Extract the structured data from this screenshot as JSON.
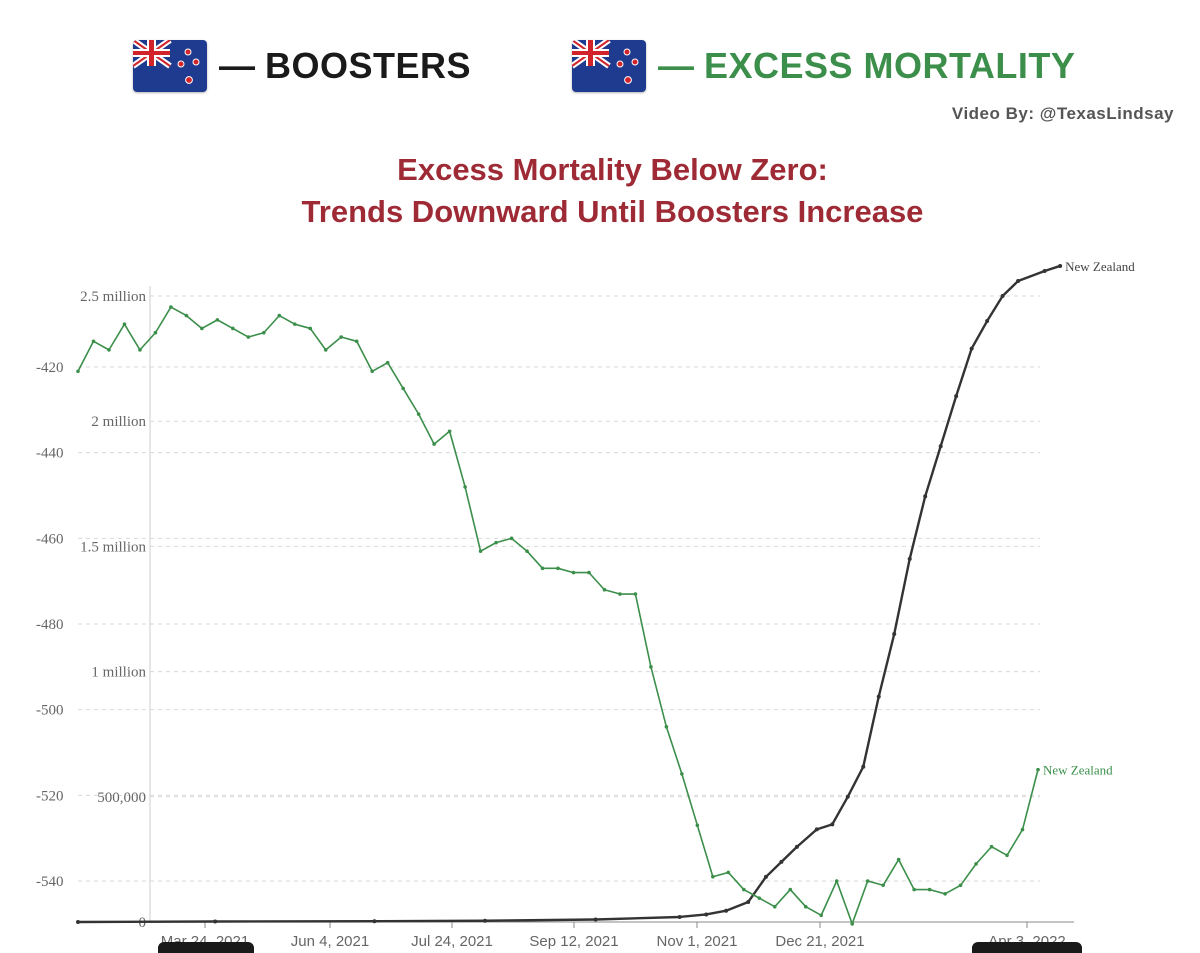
{
  "header": {
    "boosters_label": "BOOSTERS",
    "excess_label": "EXCESS MORTALITY",
    "dash": "—",
    "credit": "Video By: @TexasLindsay",
    "flag_icon": "new-zealand-flag-icon"
  },
  "colors": {
    "title": "#9e2a35",
    "boosters_line": "#333333",
    "excess_line": "#3b8f4a",
    "grid": "#d9d9d9"
  },
  "chart_data": {
    "type": "line",
    "title": "Excess Mortality Below Zero:",
    "subtitle": "Trends Downward Until Boosters Increase",
    "x_tick_labels": [
      "Mar 24, 2021",
      "Jun 4, 2021",
      "Jul 24, 2021",
      "Sep 12, 2021",
      "Nov 1, 2021",
      "Dec 21, 2021",
      "Apr 3, 2022"
    ],
    "grid": true,
    "left_axis": {
      "series": "boosters",
      "ticks": [
        "0",
        "500,000",
        "1 million",
        "1.5 million",
        "2 million",
        "2.5 million"
      ],
      "tick_values": [
        0,
        500000,
        1000000,
        1500000,
        2000000,
        2500000
      ],
      "ylim": [
        0,
        2500000
      ]
    },
    "right_axis": {
      "series": "excess",
      "ticks": [
        "-420",
        "-440",
        "-460",
        "-480",
        "-500",
        "-520",
        "-540"
      ],
      "tick_values": [
        -420,
        -440,
        -460,
        -480,
        -500,
        -520,
        -540
      ],
      "ylim": [
        -550,
        -420
      ]
    },
    "series": [
      {
        "key": "boosters",
        "name": "New Zealand",
        "x": [
          "2021-01-21",
          "2021-03-24",
          "2021-06-04",
          "2021-07-24",
          "2021-09-12",
          "2021-10-20",
          "2021-11-01",
          "2021-11-10",
          "2021-11-20",
          "2021-11-28",
          "2021-12-05",
          "2021-12-12",
          "2021-12-21",
          "2021-12-28",
          "2022-01-04",
          "2022-01-11",
          "2022-01-18",
          "2022-01-25",
          "2022-02-01",
          "2022-02-08",
          "2022-02-15",
          "2022-02-22",
          "2022-03-01",
          "2022-03-08",
          "2022-03-15",
          "2022-03-22",
          "2022-04-03",
          "2022-04-10"
        ],
        "values": [
          0,
          2000,
          3000,
          5000,
          10000,
          20000,
          30000,
          45000,
          80000,
          180000,
          240000,
          300000,
          370000,
          390000,
          500000,
          620000,
          900000,
          1150000,
          1450000,
          1700000,
          1900000,
          2100000,
          2290000,
          2400000,
          2500000,
          2560000,
          2600000,
          2620000
        ]
      },
      {
        "key": "excess",
        "name": "New Zealand",
        "x": [
          "2021-01-21",
          "2021-01-28",
          "2021-02-04",
          "2021-02-11",
          "2021-02-18",
          "2021-02-25",
          "2021-03-04",
          "2021-03-11",
          "2021-03-18",
          "2021-03-25",
          "2021-04-01",
          "2021-04-08",
          "2021-04-15",
          "2021-04-22",
          "2021-04-29",
          "2021-05-06",
          "2021-05-13",
          "2021-05-20",
          "2021-05-27",
          "2021-06-03",
          "2021-06-10",
          "2021-06-17",
          "2021-06-24",
          "2021-07-01",
          "2021-07-08",
          "2021-07-15",
          "2021-07-22",
          "2021-07-29",
          "2021-08-05",
          "2021-08-12",
          "2021-08-19",
          "2021-08-26",
          "2021-09-02",
          "2021-09-09",
          "2021-09-16",
          "2021-09-23",
          "2021-09-30",
          "2021-10-07",
          "2021-10-14",
          "2021-10-21",
          "2021-10-28",
          "2021-11-04",
          "2021-11-11",
          "2021-11-18",
          "2021-11-25",
          "2021-12-02",
          "2021-12-09",
          "2021-12-16",
          "2021-12-23",
          "2021-12-30",
          "2022-01-06",
          "2022-01-13",
          "2022-01-20",
          "2022-01-27",
          "2022-02-03",
          "2022-02-10",
          "2022-02-17",
          "2022-02-24",
          "2022-03-03",
          "2022-03-10",
          "2022-03-17",
          "2022-03-24",
          "2022-03-31"
        ],
        "values": [
          -421,
          -414,
          -416,
          -410,
          -416,
          -412,
          -406,
          -408,
          -411,
          -409,
          -411,
          -413,
          -412,
          -408,
          -410,
          -411,
          -416,
          -413,
          -414,
          -421,
          -419,
          -425,
          -431,
          -438,
          -435,
          -448,
          -463,
          -461,
          -460,
          -463,
          -467,
          -467,
          -468,
          -468,
          -472,
          -473,
          -473,
          -490,
          -504,
          -515,
          -527,
          -539,
          -538,
          -542,
          -544,
          -546,
          -542,
          -546,
          -548,
          -540,
          -550,
          -540,
          -541,
          -535,
          -542,
          -542,
          -543,
          -541,
          -536,
          -532,
          -534,
          -528,
          -514
        ]
      }
    ],
    "end_labels": [
      "New Zealand",
      "New Zealand"
    ]
  }
}
